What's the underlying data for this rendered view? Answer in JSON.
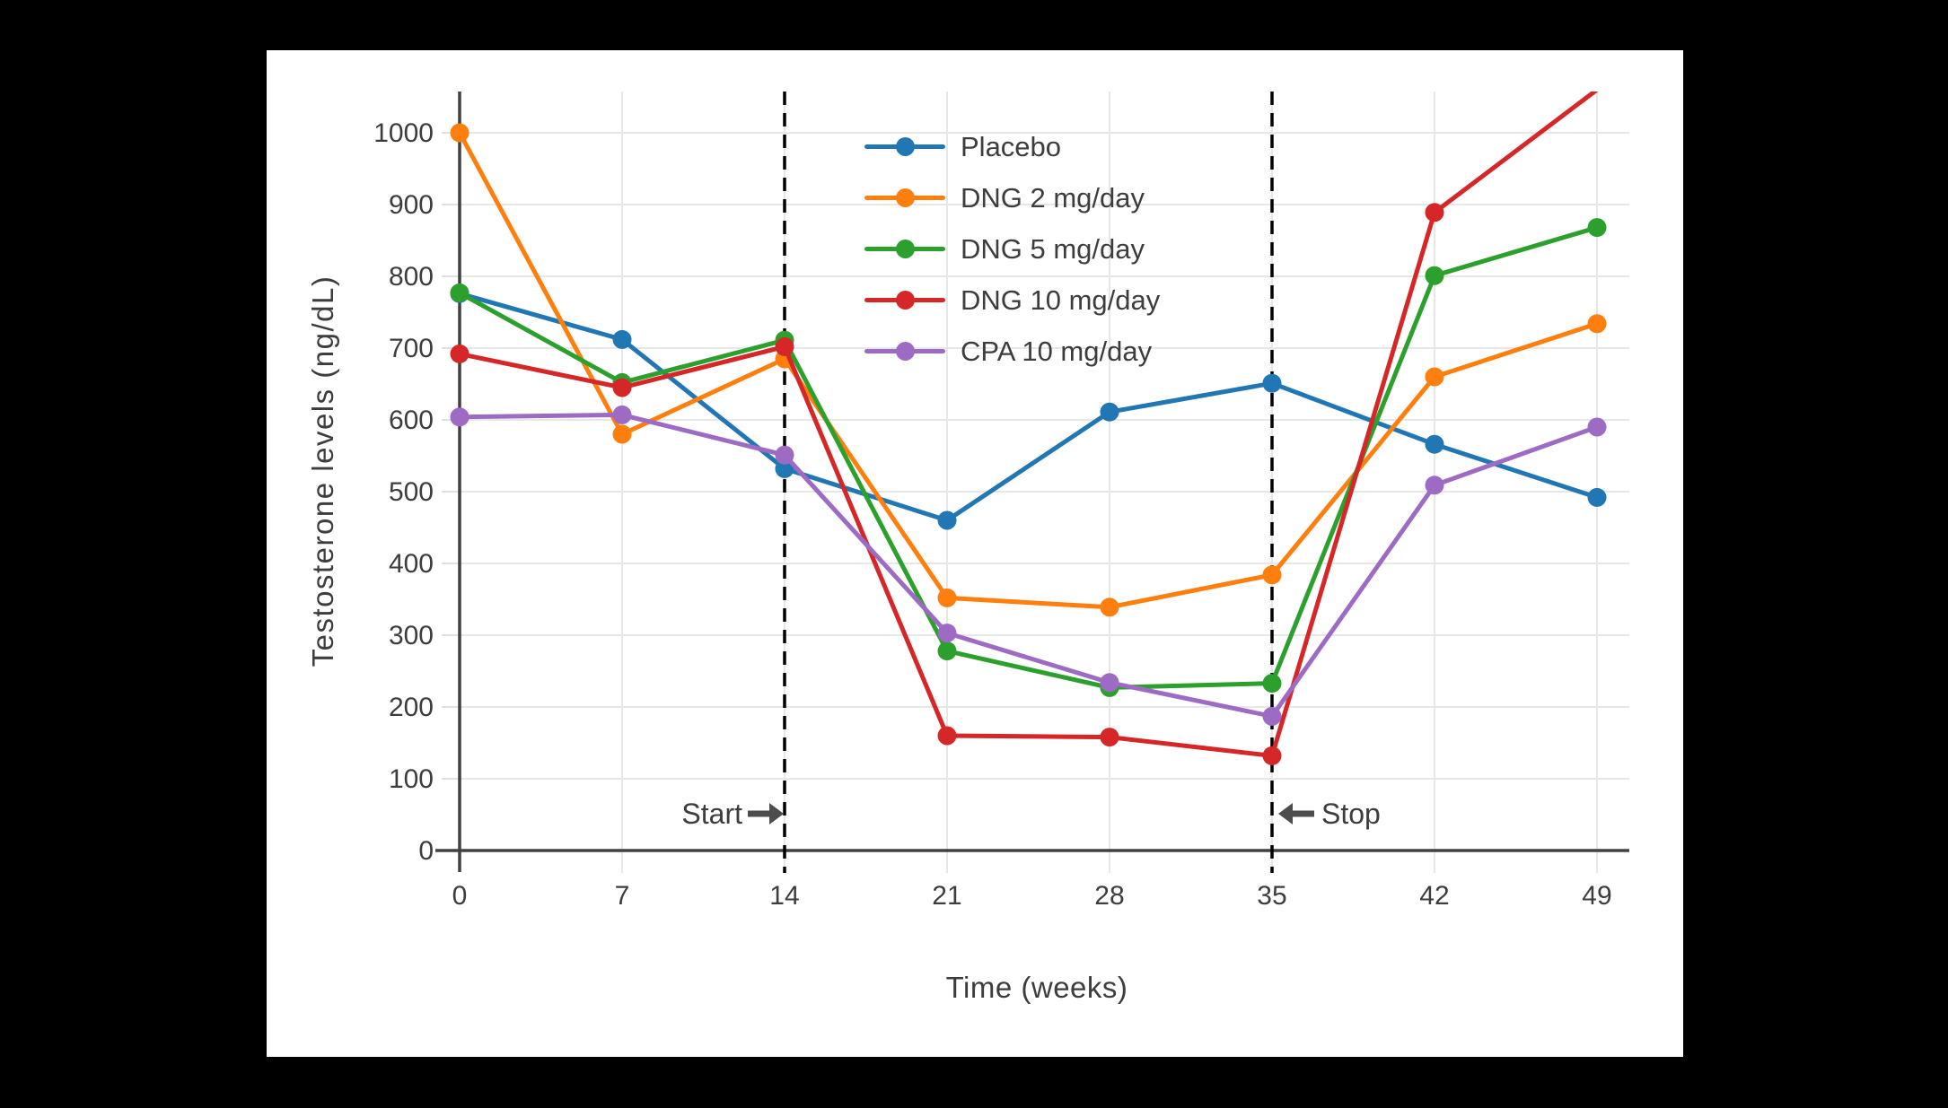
{
  "colors": {
    "page_background": "#000000",
    "card_background": "#ffffff",
    "axis": "#414141",
    "grid": "#e7e7e7",
    "tick": "#e0e0e0",
    "text": "#3d3d3d",
    "dashed_line": "#000000",
    "annotation_arrow": "#4d4d4d"
  },
  "chart_data": {
    "type": "line",
    "title": "",
    "xlabel": "Time (weeks)",
    "ylabel": "Testosterone levels (ng/dL)",
    "x": [
      0,
      7,
      14,
      21,
      28,
      35,
      42,
      49
    ],
    "xticks": [
      0,
      7,
      14,
      21,
      28,
      35,
      42,
      49
    ],
    "yticks": [
      0,
      100,
      200,
      300,
      400,
      500,
      600,
      700,
      800,
      900,
      1000
    ],
    "xlim": [
      0,
      50.4
    ],
    "ylim": [
      0,
      1057
    ],
    "grid": true,
    "legend_position": "top-center",
    "series": [
      {
        "name": "Placebo",
        "color": "#2077b4",
        "values": [
          776,
          712,
          532,
          460,
          611,
          651,
          566,
          492
        ]
      },
      {
        "name": "DNG 2 mg/day",
        "color": "#ff7f0e",
        "values": [
          1000,
          580,
          685,
          352,
          339,
          384,
          660,
          734
        ]
      },
      {
        "name": "DNG 5 mg/day",
        "color": "#2ca02c",
        "values": [
          777,
          652,
          711,
          278,
          227,
          233,
          801,
          868
        ]
      },
      {
        "name": "DNG 10 mg/day",
        "color": "#d62728",
        "values": [
          692,
          645,
          702,
          160,
          158,
          132,
          889,
          1060
        ]
      },
      {
        "name": "CPA 10 mg/day",
        "color": "#9d6bc3",
        "values": [
          604,
          607,
          551,
          303,
          234,
          187,
          509,
          590
        ]
      }
    ],
    "annotations": [
      {
        "label": "Start",
        "week": 14,
        "direction": "right"
      },
      {
        "label": "Stop",
        "week": 35,
        "direction": "left"
      }
    ]
  }
}
